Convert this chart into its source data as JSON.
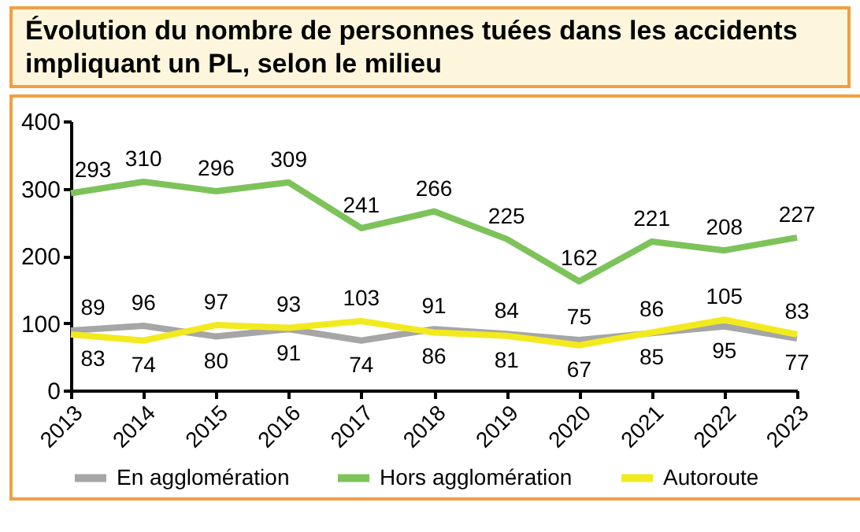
{
  "chart_data": {
    "type": "line",
    "title": "Évolution du nombre de personnes tuées dans les accidents impliquant un PL, selon le milieu",
    "categories": [
      "2013",
      "2014",
      "2015",
      "2016",
      "2017",
      "2018",
      "2019",
      "2020",
      "2021",
      "2022",
      "2023"
    ],
    "series": [
      {
        "name": "En agglomération",
        "color": "#a6a6a6",
        "values": [
          89,
          96,
          80,
          91,
          74,
          91,
          84,
          75,
          85,
          95,
          77
        ]
      },
      {
        "name": "Hors agglomération",
        "color": "#7dc35a",
        "values": [
          293,
          310,
          296,
          309,
          241,
          266,
          225,
          162,
          221,
          208,
          227
        ]
      },
      {
        "name": "Autoroute",
        "color": "#f2ea1e",
        "values": [
          83,
          74,
          97,
          93,
          103,
          86,
          81,
          67,
          86,
          105,
          83
        ]
      }
    ],
    "ylim": [
      0,
      400
    ],
    "yticks": [
      0,
      100,
      200,
      300,
      400
    ],
    "grid": false,
    "legend": "bottom",
    "data_labels": true,
    "marker": "none",
    "line_style": "solid"
  }
}
